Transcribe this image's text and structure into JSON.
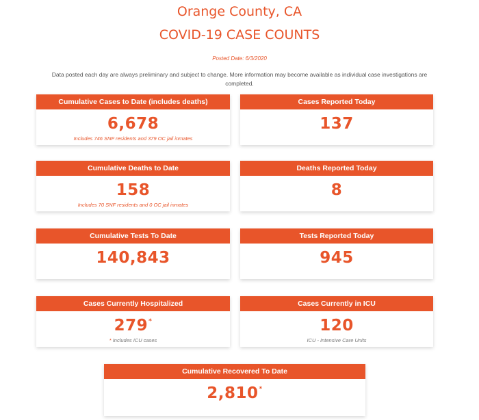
{
  "header": {
    "county": "Orange County, CA",
    "title": "COVID-19 CASE COUNTS",
    "posted": "Posted Date: 6/3/2020",
    "disclaimer": "Data posted each day are always preliminary and subject to change. More information may become available as individual case investigations are completed."
  },
  "cards": {
    "cum_cases": {
      "label": "Cumulative Cases to Date (includes deaths)",
      "value": "6,678",
      "note": "Includes 746 SNF residents and 379 OC jail inmates"
    },
    "cases_today": {
      "label": "Cases Reported Today",
      "value": "137"
    },
    "cum_deaths": {
      "label": "Cumulative Deaths to Date",
      "value": "158",
      "note": "Includes 70 SNF residents and 0 OC jail inmates"
    },
    "deaths_today": {
      "label": "Deaths Reported Today",
      "value": "8"
    },
    "cum_tests": {
      "label": "Cumulative Tests To Date",
      "value": "140,843"
    },
    "tests_today": {
      "label": "Tests Reported Today",
      "value": "945"
    },
    "hospitalized": {
      "label": "Cases Currently Hospitalized",
      "value": "279",
      "mark": "*",
      "note_mark": "*",
      "note": "Includes ICU cases"
    },
    "icu": {
      "label": "Cases Currently in ICU",
      "value": "120",
      "note": "ICU - Intensive Care Units"
    },
    "recovered": {
      "label": "Cumulative Recovered To Date",
      "value": "2,810",
      "mark": "*"
    }
  }
}
